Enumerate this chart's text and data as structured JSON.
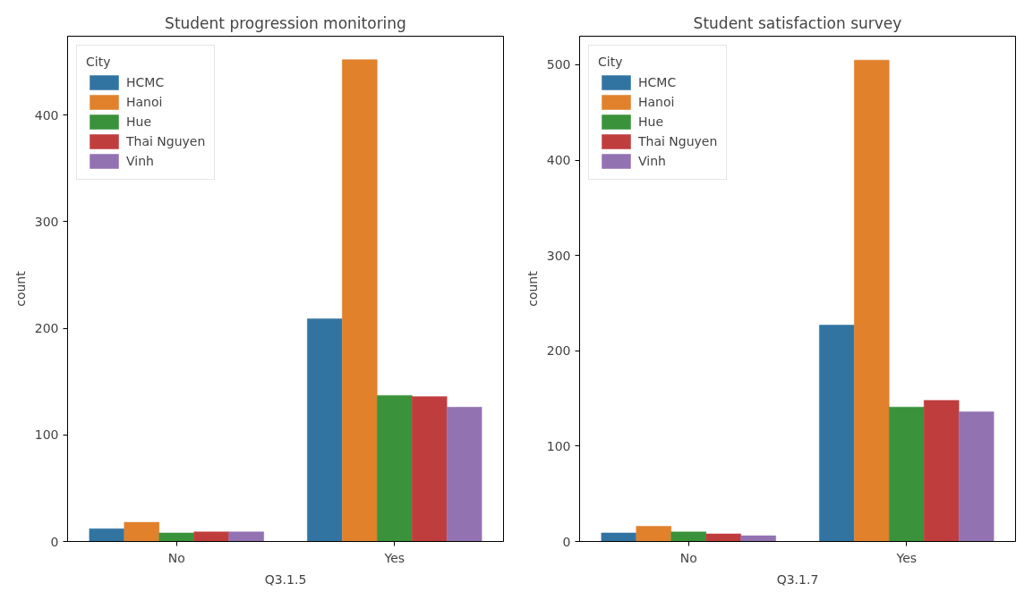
{
  "chart_data": [
    {
      "type": "bar",
      "title": "Student progression monitoring",
      "xlabel": "Q3.1.5",
      "ylabel": "count",
      "categories": [
        "No",
        "Yes"
      ],
      "legend_title": "City",
      "legend": "top left",
      "grid": false,
      "ylim": [
        0,
        474
      ],
      "yticks": [
        0,
        100,
        200,
        300,
        400
      ],
      "series": [
        {
          "name": "HCMC",
          "color": "#3274a1",
          "values": [
            12,
            209
          ]
        },
        {
          "name": "Hanoi",
          "color": "#e1812c",
          "values": [
            18,
            452
          ]
        },
        {
          "name": "Hue",
          "color": "#3a923a",
          "values": [
            8,
            137
          ]
        },
        {
          "name": "Thai Nguyen",
          "color": "#c03d3e",
          "values": [
            9,
            136
          ]
        },
        {
          "name": "Vinh",
          "color": "#9372b2",
          "values": [
            9,
            126
          ]
        }
      ]
    },
    {
      "type": "bar",
      "title": "Student satisfaction survey",
      "xlabel": "Q3.1.7",
      "ylabel": "count",
      "categories": [
        "No",
        "Yes"
      ],
      "legend_title": "City",
      "legend": "top left",
      "grid": false,
      "ylim": [
        0,
        530
      ],
      "yticks": [
        0,
        100,
        200,
        300,
        400,
        500
      ],
      "series": [
        {
          "name": "HCMC",
          "color": "#3274a1",
          "values": [
            9,
            227
          ]
        },
        {
          "name": "Hanoi",
          "color": "#e1812c",
          "values": [
            16,
            505
          ]
        },
        {
          "name": "Hue",
          "color": "#3a923a",
          "values": [
            10,
            141
          ]
        },
        {
          "name": "Thai Nguyen",
          "color": "#c03d3e",
          "values": [
            8,
            148
          ]
        },
        {
          "name": "Vinh",
          "color": "#9372b2",
          "values": [
            6,
            136
          ]
        }
      ]
    }
  ]
}
